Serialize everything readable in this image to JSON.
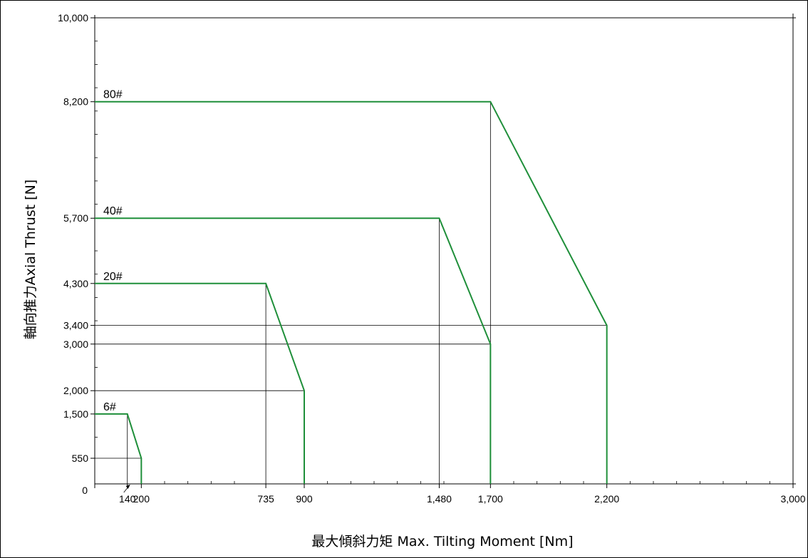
{
  "chart_data": {
    "type": "line",
    "title": "",
    "xlabel": "最大傾斜力矩  Max. Tilting Moment     [Nm]",
    "ylabel": "軸向推力Axial Thrust     [N]",
    "xlim": [
      0,
      3000
    ],
    "ylim": [
      0,
      10000
    ],
    "x_ticks": [
      {
        "value": 0,
        "label": "0"
      },
      {
        "value": 140,
        "label": "140"
      },
      {
        "value": 200,
        "label": "200"
      },
      {
        "value": 735,
        "label": "735"
      },
      {
        "value": 900,
        "label": "900"
      },
      {
        "value": 1480,
        "label": "1,480"
      },
      {
        "value": 1700,
        "label": "1,700"
      },
      {
        "value": 2200,
        "label": "2,200"
      },
      {
        "value": 3000,
        "label": "3,000"
      }
    ],
    "y_ticks": [
      {
        "value": 550,
        "label": "550"
      },
      {
        "value": 1500,
        "label": "1,500"
      },
      {
        "value": 2000,
        "label": "2,000"
      },
      {
        "value": 3000,
        "label": "3,000"
      },
      {
        "value": 3400,
        "label": "3,400"
      },
      {
        "value": 4300,
        "label": "4,300"
      },
      {
        "value": 5700,
        "label": "5,700"
      },
      {
        "value": 8200,
        "label": "8,200"
      },
      {
        "value": 10000,
        "label": "10,000"
      }
    ],
    "minor_x_ticks": [
      300,
      400,
      500,
      600,
      1000,
      1100,
      1200,
      1300,
      1400,
      1500,
      1800,
      1900,
      2000,
      2100,
      2300,
      2400,
      2500,
      2600,
      2700,
      2800,
      2900
    ],
    "minor_y_ticks": [
      1000,
      2500,
      3500,
      4000,
      4500,
      5000,
      6000,
      6500,
      7000,
      7500,
      8000,
      8500,
      9000,
      9500
    ],
    "series": [
      {
        "name": "6#",
        "color": "#1f8f3a",
        "points": [
          [
            0,
            1500
          ],
          [
            140,
            1500
          ],
          [
            200,
            550
          ],
          [
            200,
            0
          ]
        ]
      },
      {
        "name": "20#",
        "color": "#1f8f3a",
        "points": [
          [
            0,
            4300
          ],
          [
            735,
            4300
          ],
          [
            900,
            2000
          ],
          [
            900,
            0
          ]
        ]
      },
      {
        "name": "40#",
        "color": "#1f8f3a",
        "points": [
          [
            0,
            5700
          ],
          [
            1480,
            5700
          ],
          [
            1700,
            3000
          ],
          [
            1700,
            0
          ]
        ]
      },
      {
        "name": "80#",
        "color": "#1f8f3a",
        "points": [
          [
            0,
            8200
          ],
          [
            1700,
            8200
          ],
          [
            2200,
            3400
          ],
          [
            2200,
            0
          ]
        ]
      }
    ],
    "guides": [
      {
        "x": 140,
        "y": 1500
      },
      {
        "x": 200,
        "y": 550
      },
      {
        "x": 735,
        "y": 4300
      },
      {
        "x": 900,
        "y": 2000
      },
      {
        "x": 1480,
        "y": 5700
      },
      {
        "x": 1700,
        "y": 3000
      },
      {
        "x": 1700,
        "y": 8200
      },
      {
        "x": 2200,
        "y": 3400
      }
    ],
    "grid": false
  }
}
